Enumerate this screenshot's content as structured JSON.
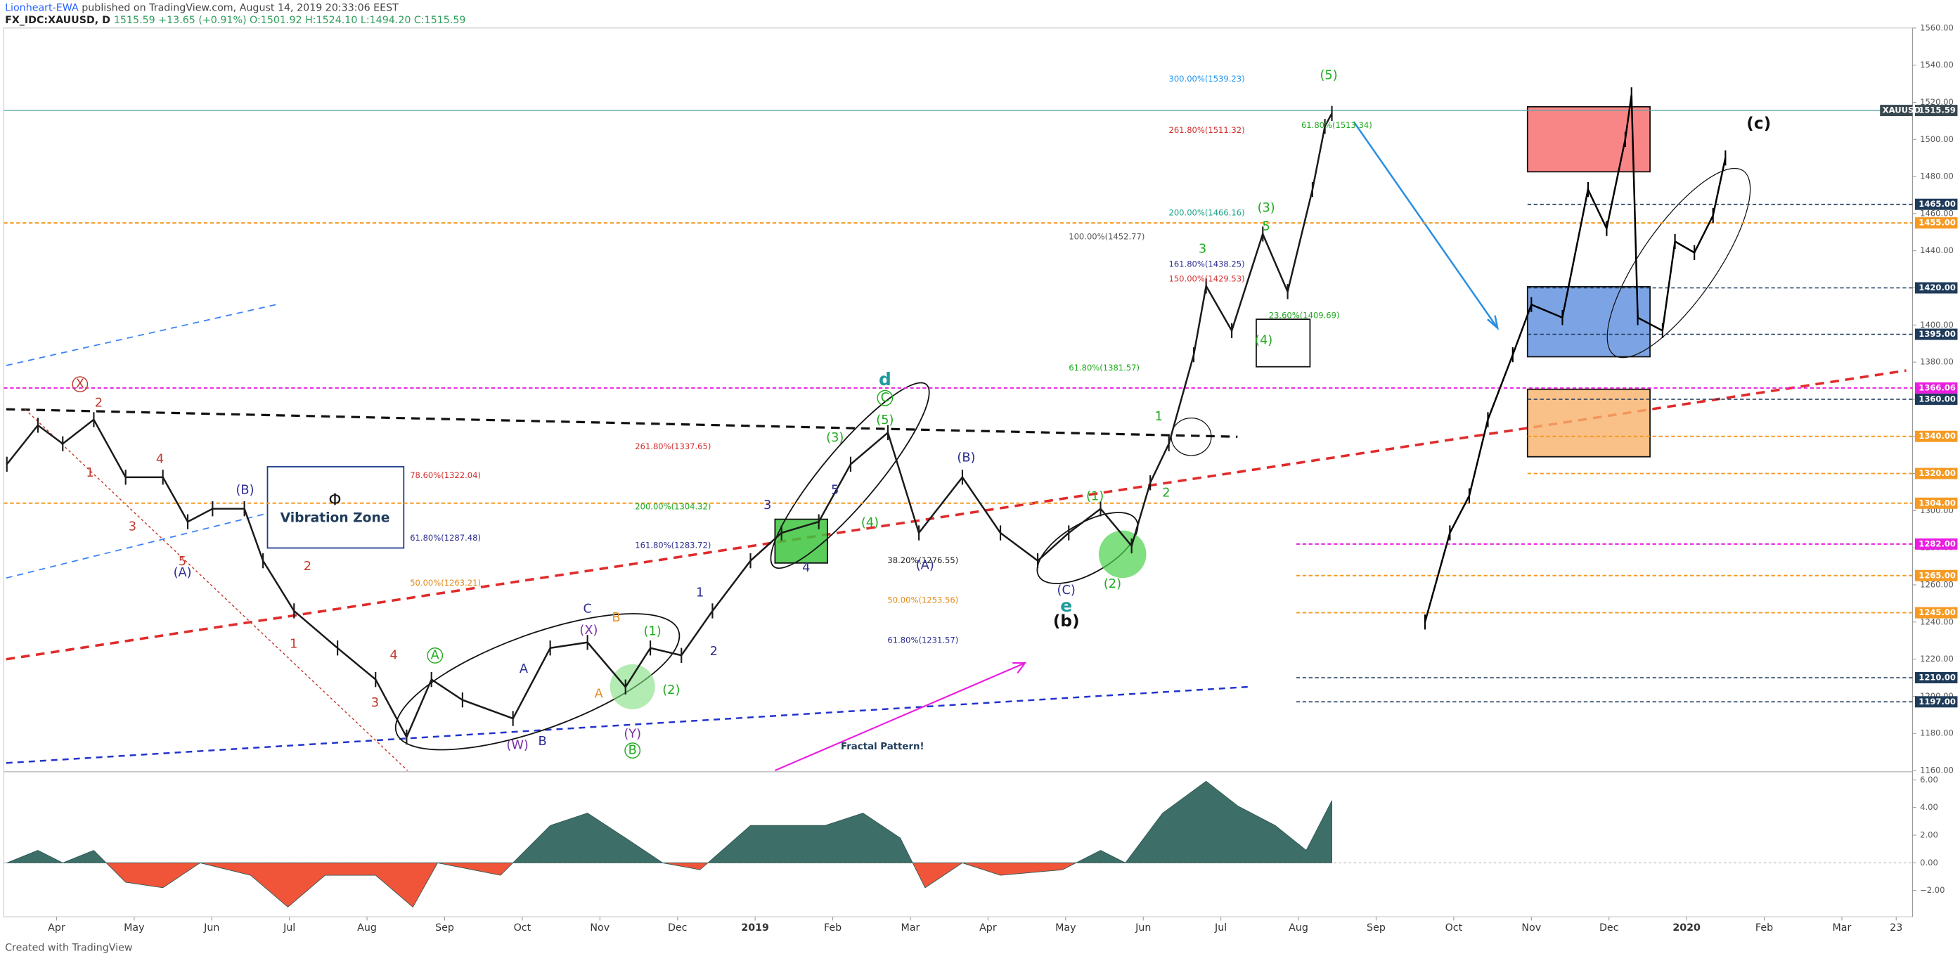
{
  "header": {
    "author": "Lionheart-EWA",
    "published": "published on TradingView.com, August 14, 2019 20:33:06 EEST",
    "symbol": "FX_IDC:XAUUSD, D",
    "ohlc": "1515.59 +13.65 (+0.91%) O:1501.92 H:1524.10 L:1494.20 C:1515.59"
  },
  "footer": "Created with TradingView",
  "chart_data": [
    {
      "type": "line",
      "xlim": [
        -0.68,
        23.91
      ],
      "xticks": [
        {
          "value": 0,
          "label": "Apr"
        },
        {
          "value": 1,
          "label": "May"
        },
        {
          "value": 2,
          "label": "Jun"
        },
        {
          "value": 3,
          "label": "Jul"
        },
        {
          "value": 4,
          "label": "Aug"
        },
        {
          "value": 5,
          "label": "Sep"
        },
        {
          "value": 6,
          "label": "Oct"
        },
        {
          "value": 7,
          "label": "Nov"
        },
        {
          "value": 8,
          "label": "Dec"
        },
        {
          "value": 9,
          "label": "2019"
        },
        {
          "value": 10,
          "label": "Feb"
        },
        {
          "value": 11,
          "label": "Mar"
        },
        {
          "value": 12,
          "label": "Apr"
        },
        {
          "value": 13,
          "label": "May"
        },
        {
          "value": 14,
          "label": "Jun"
        },
        {
          "value": 15,
          "label": "Jul"
        },
        {
          "value": 16,
          "label": "Aug"
        },
        {
          "value": 17,
          "label": "Sep"
        },
        {
          "value": 18,
          "label": "Oct"
        },
        {
          "value": 19,
          "label": "Nov"
        },
        {
          "value": 20,
          "label": "Dec"
        },
        {
          "value": 21,
          "label": "2020"
        },
        {
          "value": 22,
          "label": "Feb"
        },
        {
          "value": 23,
          "label": "Mar"
        },
        {
          "value": 23.7,
          "label": "23"
        }
      ],
      "ylim": [
        1160,
        1560
      ],
      "yticks": [
        {
          "value": 1160,
          "label": "1160.00"
        },
        {
          "value": 1180,
          "label": "1180.00"
        },
        {
          "value": 1200,
          "label": "1200.00"
        },
        {
          "value": 1220,
          "label": "1220.00"
        },
        {
          "value": 1240,
          "label": "1240.00"
        },
        {
          "value": 1260,
          "label": "1260.00"
        },
        {
          "value": 1280,
          "label": "1280.00"
        },
        {
          "value": 1300,
          "label": "1300.00"
        },
        {
          "value": 1320,
          "label": "1320.00"
        },
        {
          "value": 1340,
          "label": "1340.00"
        },
        {
          "value": 1360,
          "label": "1360.00"
        },
        {
          "value": 1380,
          "label": "1380.00"
        },
        {
          "value": 1400,
          "label": "1400.00"
        },
        {
          "value": 1420,
          "label": "1420.00"
        },
        {
          "value": 1440,
          "label": "1440.00"
        },
        {
          "value": 1460,
          "label": "1460.00"
        },
        {
          "value": 1480,
          "label": "1480.00"
        },
        {
          "value": 1500,
          "label": "1500.00"
        },
        {
          "value": 1520,
          "label": "1520.00"
        },
        {
          "value": 1540,
          "label": "1540.00"
        },
        {
          "value": 1560,
          "label": "1560.00"
        }
      ],
      "series": [
        {
          "name": "XAUUSD",
          "color": "#1a1a1a",
          "x": [
            -0.64,
            -0.24,
            0.08,
            0.48,
            0.89,
            1.37,
            1.69,
            2.01,
            2.42,
            2.66,
            3.06,
            3.62,
            4.11,
            4.51,
            4.83,
            5.23,
            5.88,
            6.36,
            6.84,
            7.33,
            7.65,
            8.05,
            8.45,
            8.94,
            9.34,
            9.82,
            10.23,
            10.71,
            11.11,
            11.67,
            12.16,
            12.64,
            13.04,
            13.45,
            13.85,
            14.09,
            14.33,
            14.65,
            14.81,
            15.14,
            15.54,
            15.86,
            16.18,
            16.34,
            16.43
          ],
          "values": [
            1325,
            1346,
            1336,
            1349,
            1318,
            1318,
            1294,
            1301,
            1301,
            1273,
            1246,
            1226,
            1209,
            1178,
            1209,
            1198,
            1188,
            1226,
            1229,
            1205,
            1226,
            1222,
            1246,
            1273,
            1288,
            1294,
            1325,
            1342,
            1288,
            1318,
            1288,
            1273,
            1288,
            1301,
            1281,
            1315,
            1336,
            1384,
            1421,
            1397,
            1449,
            1418,
            1473,
            1507,
            1514
          ]
        },
        {
          "color": "#000000",
          "x": [
            17.63,
            17.95,
            18.2,
            18.44,
            18.76,
            19.0,
            19.4,
            19.73,
            19.97,
            20.21,
            20.29,
            20.37,
            20.69,
            20.85,
            21.1,
            21.34,
            21.5
          ],
          "values": [
            1240,
            1288,
            1308,
            1349,
            1384,
            1411,
            1404,
            1473,
            1452,
            1500,
            1524,
            1404,
            1397,
            1445,
            1439,
            1459,
            1490
          ]
        }
      ],
      "last_price": {
        "value": 1515.59,
        "label": "1515.59",
        "color": "#37474f",
        "name": "XAUUSD"
      },
      "levels": [
        {
          "value": 1465,
          "label": "1465.00",
          "color": "#1f3b5a"
        },
        {
          "value": 1455,
          "label": "1455.00",
          "color": "#f59a23"
        },
        {
          "value": 1420,
          "label": "1420.00",
          "color": "#1f3b5a"
        },
        {
          "value": 1395,
          "label": "1395.00",
          "color": "#1f3b5a"
        },
        {
          "value": 1366.06,
          "label": "1366.06",
          "color": "#e91ee0"
        },
        {
          "value": 1360,
          "label": "1360.00",
          "color": "#1f3b5a"
        },
        {
          "value": 1340,
          "label": "1340.00",
          "color": "#f59a23"
        },
        {
          "value": 1320,
          "label": "1320.00",
          "color": "#f59a23"
        },
        {
          "value": 1304,
          "label": "1304.00",
          "color": "#f59a23"
        },
        {
          "value": 1282,
          "label": "1282.00",
          "color": "#e91ee0"
        },
        {
          "value": 1265,
          "label": "1265.00",
          "color": "#f59a23"
        },
        {
          "value": 1245,
          "label": "1245.00",
          "color": "#f59a23"
        },
        {
          "value": 1210,
          "label": "1210.00",
          "color": "#1f3b5a"
        },
        {
          "value": 1197,
          "label": "1197.00",
          "color": "#1f3b5a"
        }
      ]
    },
    {
      "type": "area",
      "x": [
        -0.64,
        -0.24,
        0.08,
        0.48,
        0.89,
        1.37,
        1.85,
        2.5,
        2.98,
        3.46,
        4.11,
        4.59,
        4.91,
        5.72,
        6.36,
        6.84,
        7.33,
        7.81,
        8.29,
        8.94,
        9.26,
        9.9,
        10.39,
        10.87,
        11.19,
        11.67,
        12.16,
        12.96,
        13.45,
        13.77,
        14.25,
        14.81,
        15.22,
        15.7,
        16.1,
        16.43
      ],
      "values": [
        0,
        0.9,
        0,
        0.9,
        -1.4,
        -1.8,
        0,
        -0.9,
        -3.2,
        -0.9,
        -0.9,
        -3.2,
        0,
        -0.9,
        2.7,
        3.6,
        1.8,
        0,
        -0.5,
        2.7,
        2.7,
        2.7,
        3.6,
        1.8,
        -1.8,
        0,
        -0.9,
        -0.5,
        0.9,
        0,
        3.6,
        5.9,
        4.1,
        2.7,
        0.9,
        4.5
      ],
      "colors": {
        "positive": "#3d6e68",
        "negative": "#f0553a"
      },
      "ylim": [
        -3.9,
        6.5
      ],
      "yticks": [
        {
          "value": 6,
          "label": "6.00"
        },
        {
          "value": 4,
          "label": "4.00"
        },
        {
          "value": 2,
          "label": "2.00"
        },
        {
          "value": 0,
          "label": "0.00"
        },
        {
          "value": -2,
          "label": "−2.00"
        }
      ]
    }
  ],
  "annotations": [
    "300.00%(1539.23)",
    "261.80%(1511.32)",
    "200.00%(1466.16)",
    "100.00%(1452.77)",
    "161.80%(1438.25)",
    "150.00%(1429.53)",
    "23.60%(1409.69)",
    "61.80%(1381.57)",
    "261.80%(1337.65)",
    "78.60%(1322.04)",
    "200.00%(1304.32)",
    "61.80%(1287.48)",
    "161.80%(1283.72)",
    "38.20%(1276.55)",
    "50.00%(1263.21)",
    "50.00%(1253.56)",
    "61.80%(1231.57)",
    "61.80%(1513.34)",
    "(5)",
    "(3)",
    "3",
    "5",
    "(4)",
    "1",
    "2",
    "d",
    "C",
    "(5)",
    "(3)",
    "(4)",
    "5",
    "3",
    "4",
    "(B)",
    "(A)",
    "(C)",
    "e",
    "(b)",
    "(1)",
    "(2)",
    "X",
    "2",
    "1",
    "4",
    "3",
    "5",
    "(A)",
    "(B)",
    "2",
    "1",
    "4",
    "3",
    "A",
    "(W)",
    "B",
    "A",
    "C",
    "(X)",
    "B",
    "A",
    "(Y)",
    "B",
    "(1)",
    "(2)",
    "1",
    "2",
    "(c)",
    "Φ",
    "Vibration Zone",
    "Fractal Pattern!"
  ]
}
